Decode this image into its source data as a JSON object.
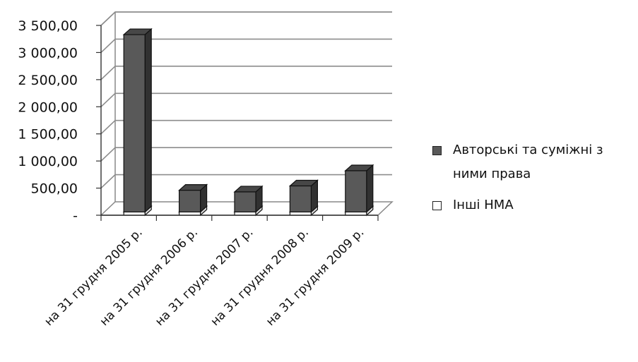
{
  "chart_data": {
    "type": "bar",
    "stacked": true,
    "three_d": true,
    "categories": [
      "на 31 грудня 2005 р.",
      "на 31 грудня 2006 р.",
      "на 31 грудня 2007 р.",
      "на 31 грудня 2008 р.",
      "на 31 грудня 2009 р."
    ],
    "series": [
      {
        "name": "Інші НМА",
        "values": [
          60,
          60,
          60,
          60,
          60
        ],
        "color": "#ffffff"
      },
      {
        "name": "Авторські та суміжні з ними права",
        "values": [
          3270,
          400,
          370,
          480,
          760
        ],
        "color": "#595959"
      }
    ],
    "ylim": [
      0,
      3500
    ],
    "yticks": [
      0,
      500,
      1000,
      1500,
      2000,
      2500,
      3000,
      3500
    ],
    "ytick_labels": [
      "-",
      "500,00",
      "1 000,00",
      "1 500,00",
      "2 000,00",
      "2 500,00",
      "3 000,00",
      "3 500,00"
    ],
    "grid": true,
    "legend_position": "right",
    "title": "",
    "xlabel": "",
    "ylabel": ""
  },
  "legend": {
    "items": [
      {
        "label": "Авторські та суміжні з ними права",
        "color": "#595959"
      },
      {
        "label": "Інші НМА",
        "color": "#ffffff"
      }
    ]
  }
}
